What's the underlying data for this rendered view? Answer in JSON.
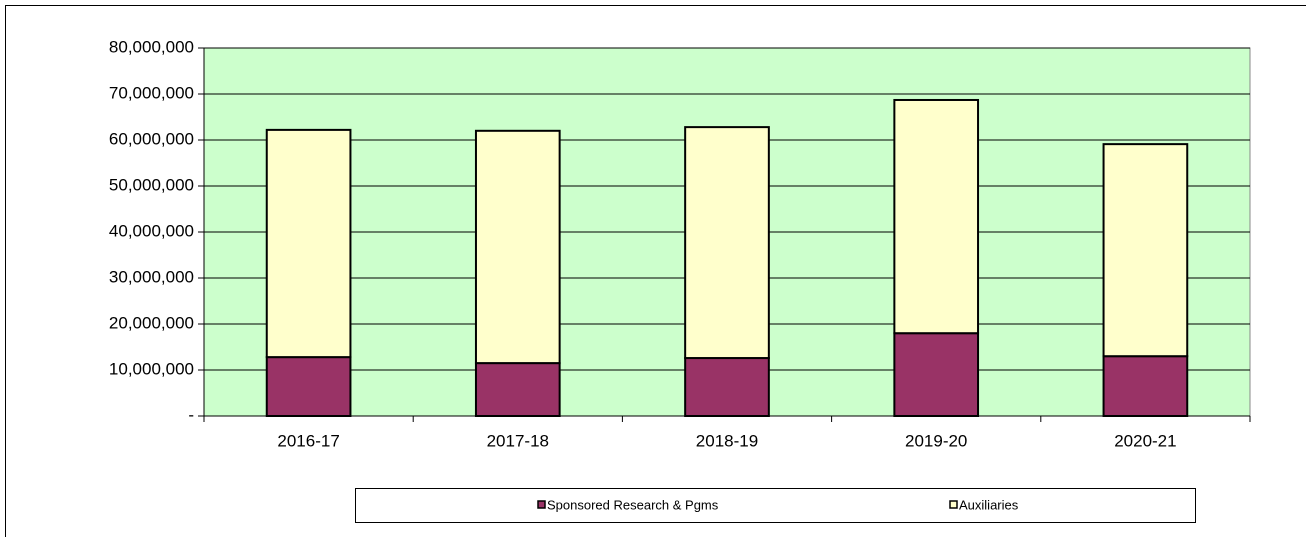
{
  "chart_data": {
    "type": "bar",
    "stacked": true,
    "categories": [
      "2016-17",
      "2017-18",
      "2018-19",
      "2019-20",
      "2020-21"
    ],
    "series": [
      {
        "name": "Sponsored Research & Pgms",
        "color": "#993366",
        "values": [
          12800000,
          11500000,
          12600000,
          18000000,
          13000000
        ]
      },
      {
        "name": "Auxiliaries",
        "color": "#ffffcc",
        "values": [
          49400000,
          50500000,
          50200000,
          50700000,
          46100000
        ]
      }
    ],
    "ylim": [
      0,
      80000000
    ],
    "yticks": [
      {
        "value": 0,
        "label": "-"
      },
      {
        "value": 10000000,
        "label": "10,000,000"
      },
      {
        "value": 20000000,
        "label": "20,000,000"
      },
      {
        "value": 30000000,
        "label": "30,000,000"
      },
      {
        "value": 40000000,
        "label": "40,000,000"
      },
      {
        "value": 50000000,
        "label": "50,000,000"
      },
      {
        "value": 60000000,
        "label": "60,000,000"
      },
      {
        "value": 70000000,
        "label": "70,000,000"
      },
      {
        "value": 80000000,
        "label": "80,000,000"
      }
    ],
    "grid": true,
    "plot_background": "#ccffcc",
    "legend": "bottom"
  }
}
